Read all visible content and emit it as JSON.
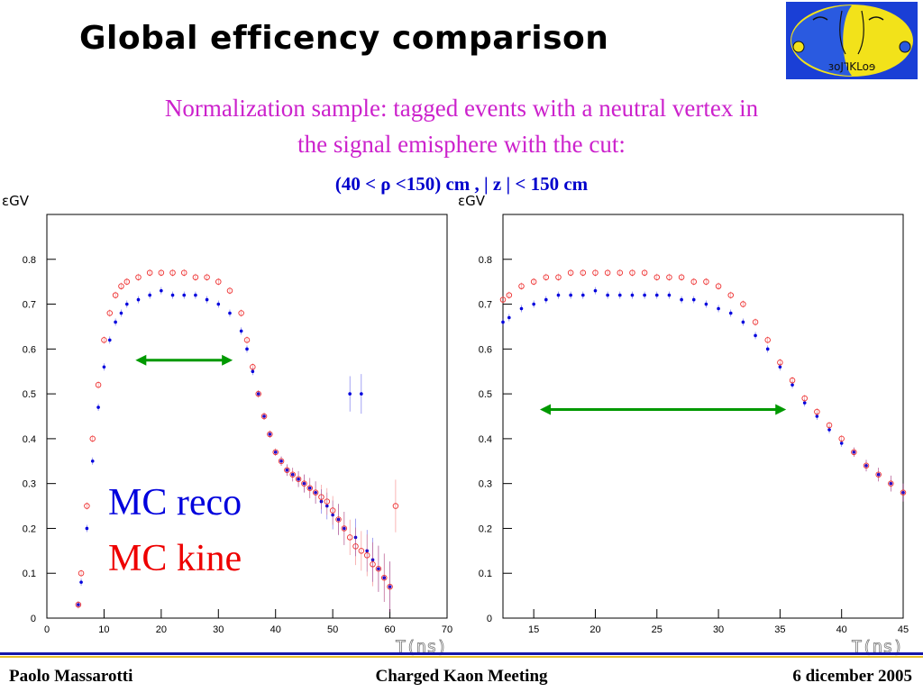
{
  "slide": {
    "title": "Global efficency comparison",
    "subtitle_line1": "Normalization sample: tagged events with a neutral vertex in",
    "subtitle_line2": "the signal emisphere with the cut:",
    "cut_text": "(40 < ρ <150) cm ,   | z | < 150 cm",
    "legend_reco": "MC reco",
    "legend_kine": "MC kine",
    "footer_left": "Paolo Massarotti",
    "footer_center": "Charged Kaon Meeting",
    "footer_right": "6 dicember 2005",
    "logo_text": "ɜoJ𐐑KLoɘ"
  },
  "colors": {
    "reco": "#0000dd",
    "kine": "#ee3333",
    "arrow": "#009900",
    "subtitle": "#cc22cc",
    "cut": "#0000cc"
  },
  "chart_data": [
    {
      "type": "scatter",
      "ylabel": "εGV",
      "xlabel": "T(ns)",
      "xlim": [
        0,
        70
      ],
      "ylim": [
        0,
        0.9
      ],
      "xticks": [
        0,
        10,
        20,
        30,
        40,
        50,
        60,
        70
      ],
      "yticks": [
        0,
        0.1,
        0.2,
        0.3,
        0.4,
        0.5,
        0.6,
        0.7,
        0.8
      ],
      "series": [
        {
          "name": "MC reco",
          "x": [
            5.5,
            6,
            7,
            8,
            9,
            10,
            11,
            12,
            13,
            14,
            16,
            18,
            20,
            22,
            24,
            26,
            28,
            30,
            32,
            34,
            35,
            36,
            37,
            38,
            39,
            40,
            41,
            42,
            43,
            44,
            45,
            46,
            47,
            48,
            49,
            50,
            51,
            52,
            53,
            54,
            55,
            56,
            57,
            58,
            59,
            60
          ],
          "y": [
            0.03,
            0.08,
            0.2,
            0.35,
            0.47,
            0.56,
            0.62,
            0.66,
            0.68,
            0.7,
            0.71,
            0.72,
            0.73,
            0.72,
            0.72,
            0.72,
            0.71,
            0.7,
            0.68,
            0.64,
            0.6,
            0.55,
            0.5,
            0.45,
            0.41,
            0.37,
            0.35,
            0.33,
            0.32,
            0.31,
            0.3,
            0.29,
            0.28,
            0.26,
            0.25,
            0.23,
            0.22,
            0.2,
            0.5,
            0.18,
            0.5,
            0.15,
            0.13,
            0.11,
            0.09,
            0.07
          ]
        },
        {
          "name": "MC kine",
          "x": [
            5.5,
            6,
            7,
            8,
            9,
            10,
            11,
            12,
            13,
            14,
            16,
            18,
            20,
            22,
            24,
            26,
            28,
            30,
            32,
            34,
            35,
            36,
            37,
            38,
            39,
            40,
            41,
            42,
            43,
            44,
            45,
            46,
            47,
            48,
            49,
            50,
            51,
            52,
            53,
            54,
            55,
            56,
            57,
            58,
            59,
            60,
            61
          ],
          "y": [
            0.03,
            0.1,
            0.25,
            0.4,
            0.52,
            0.62,
            0.68,
            0.72,
            0.74,
            0.75,
            0.76,
            0.77,
            0.77,
            0.77,
            0.77,
            0.76,
            0.76,
            0.75,
            0.73,
            0.68,
            0.62,
            0.56,
            0.5,
            0.45,
            0.41,
            0.37,
            0.35,
            0.33,
            0.32,
            0.31,
            0.3,
            0.29,
            0.28,
            0.27,
            0.26,
            0.24,
            0.22,
            0.2,
            0.18,
            0.16,
            0.15,
            0.14,
            0.12,
            0.11,
            0.09,
            0.07,
            0.25
          ]
        }
      ],
      "arrow": {
        "x1": 15.5,
        "x2": 32.5,
        "y": 0.575
      }
    },
    {
      "type": "scatter",
      "ylabel": "εGV",
      "xlabel": "T(ns)",
      "xlim": [
        12.5,
        45
      ],
      "ylim": [
        0,
        0.9
      ],
      "xticks": [
        15,
        20,
        25,
        30,
        35,
        40,
        45
      ],
      "yticks": [
        0,
        0.1,
        0.2,
        0.3,
        0.4,
        0.5,
        0.6,
        0.7,
        0.8
      ],
      "series": [
        {
          "name": "MC reco",
          "x": [
            12.5,
            13,
            14,
            15,
            16,
            17,
            18,
            19,
            20,
            21,
            22,
            23,
            24,
            25,
            26,
            27,
            28,
            29,
            30,
            31,
            32,
            33,
            34,
            35,
            36,
            37,
            38,
            39,
            40,
            41,
            42,
            43,
            44,
            45
          ],
          "y": [
            0.66,
            0.67,
            0.69,
            0.7,
            0.71,
            0.72,
            0.72,
            0.72,
            0.73,
            0.72,
            0.72,
            0.72,
            0.72,
            0.72,
            0.72,
            0.71,
            0.71,
            0.7,
            0.69,
            0.68,
            0.66,
            0.63,
            0.6,
            0.56,
            0.52,
            0.48,
            0.45,
            0.42,
            0.39,
            0.37,
            0.34,
            0.32,
            0.3,
            0.28
          ]
        },
        {
          "name": "MC kine",
          "x": [
            12.5,
            13,
            14,
            15,
            16,
            17,
            18,
            19,
            20,
            21,
            22,
            23,
            24,
            25,
            26,
            27,
            28,
            29,
            30,
            31,
            32,
            33,
            34,
            35,
            36,
            37,
            38,
            39,
            40,
            41,
            42,
            43,
            44,
            45
          ],
          "y": [
            0.71,
            0.72,
            0.74,
            0.75,
            0.76,
            0.76,
            0.77,
            0.77,
            0.77,
            0.77,
            0.77,
            0.77,
            0.77,
            0.76,
            0.76,
            0.76,
            0.75,
            0.75,
            0.74,
            0.72,
            0.7,
            0.66,
            0.62,
            0.57,
            0.53,
            0.49,
            0.46,
            0.43,
            0.4,
            0.37,
            0.34,
            0.32,
            0.3,
            0.28
          ]
        }
      ],
      "arrow": {
        "x1": 15.5,
        "x2": 35.5,
        "y": 0.465
      }
    }
  ]
}
